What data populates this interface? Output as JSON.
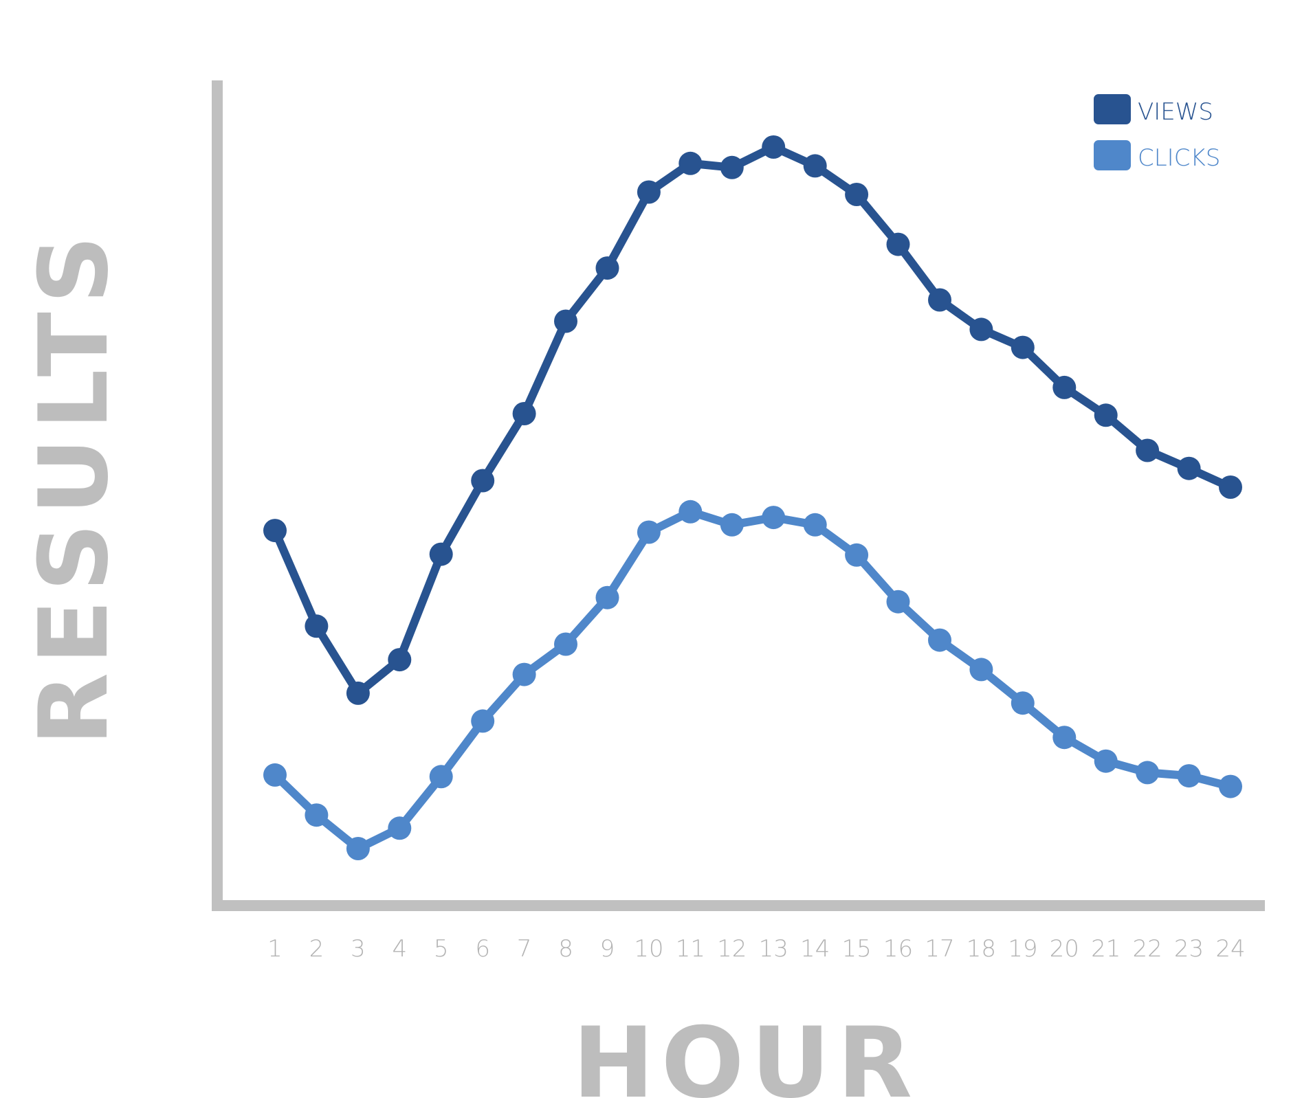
{
  "chart_data": {
    "type": "line",
    "xlabel": "HOUR",
    "ylabel": "RESULTS",
    "x": [
      1,
      2,
      3,
      4,
      5,
      6,
      7,
      8,
      9,
      10,
      11,
      12,
      13,
      14,
      15,
      16,
      17,
      18,
      19,
      20,
      21,
      22,
      23,
      24
    ],
    "tick_labels": [
      "1",
      "2",
      "3",
      "4",
      "5",
      "6",
      "7",
      "8",
      "9",
      "10",
      "11",
      "12",
      "13",
      "14",
      "15",
      "16",
      "17",
      "18",
      "19",
      "20",
      "21",
      "22",
      "23",
      "24"
    ],
    "ylim": [
      0,
      100
    ],
    "grid": false,
    "legend": "top-right",
    "series": [
      {
        "name": "VIEWS",
        "color": "#285390",
        "values": [
          45.2,
          33.5,
          25.3,
          29.4,
          42.3,
          51.3,
          59.5,
          70.8,
          77.3,
          86.6,
          90.1,
          89.6,
          92.1,
          89.8,
          86.3,
          80.2,
          73.4,
          69.8,
          67.6,
          62.7,
          59.3,
          55.0,
          52.8,
          50.5
        ]
      },
      {
        "name": "CLICKS",
        "color": "#4f87ca",
        "values": [
          15.3,
          10.4,
          6.3,
          8.8,
          15.1,
          21.9,
          27.6,
          31.3,
          37.0,
          45.0,
          47.5,
          45.9,
          46.8,
          45.9,
          42.2,
          36.5,
          31.8,
          28.2,
          24.1,
          19.9,
          17.0,
          15.6,
          15.2,
          13.9
        ]
      }
    ]
  }
}
